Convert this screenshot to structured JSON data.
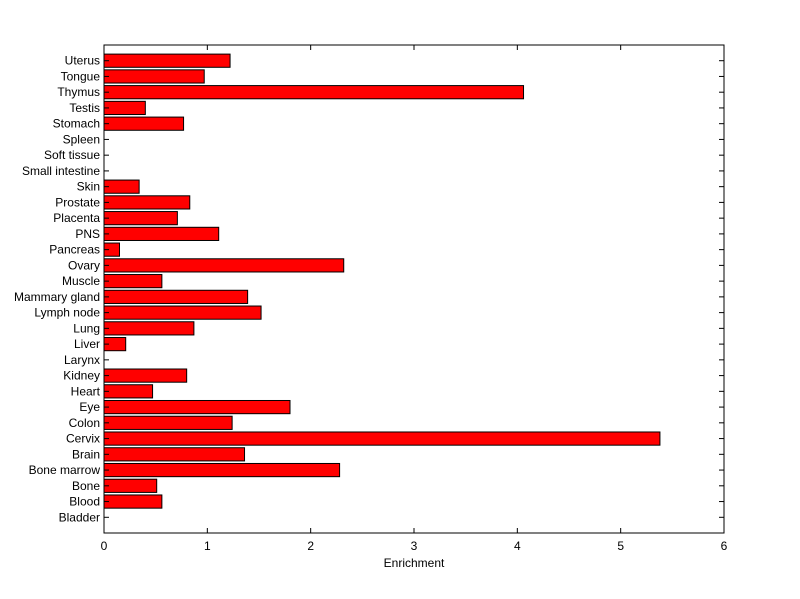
{
  "chart_data": {
    "type": "bar",
    "orientation": "horizontal",
    "title": "",
    "xlabel": "Enrichment",
    "ylabel": "",
    "xlim": [
      0,
      6
    ],
    "xticks": [
      0,
      1,
      2,
      3,
      4,
      5,
      6
    ],
    "grid": false,
    "legend": "none",
    "bar_color": "#ff0000",
    "bar_edge_color": "#000000",
    "categories": [
      "Bladder",
      "Blood",
      "Bone",
      "Bone marrow",
      "Brain",
      "Cervix",
      "Colon",
      "Eye",
      "Heart",
      "Kidney",
      "Larynx",
      "Liver",
      "Lung",
      "Lymph node",
      "Mammary gland",
      "Muscle",
      "Ovary",
      "Pancreas",
      "PNS",
      "Placenta",
      "Prostate",
      "Skin",
      "Small intestine",
      "Soft tissue",
      "Spleen",
      "Stomach",
      "Testis",
      "Thymus",
      "Tongue",
      "Uterus"
    ],
    "values": [
      0,
      0.56,
      0.51,
      2.28,
      1.36,
      5.38,
      1.24,
      1.8,
      0.47,
      0.8,
      0,
      0.21,
      0.87,
      1.52,
      1.39,
      0.56,
      2.32,
      0.15,
      1.11,
      0.71,
      0.83,
      0.34,
      0,
      0,
      0,
      0.77,
      0.4,
      4.06,
      0.97,
      1.22
    ]
  }
}
